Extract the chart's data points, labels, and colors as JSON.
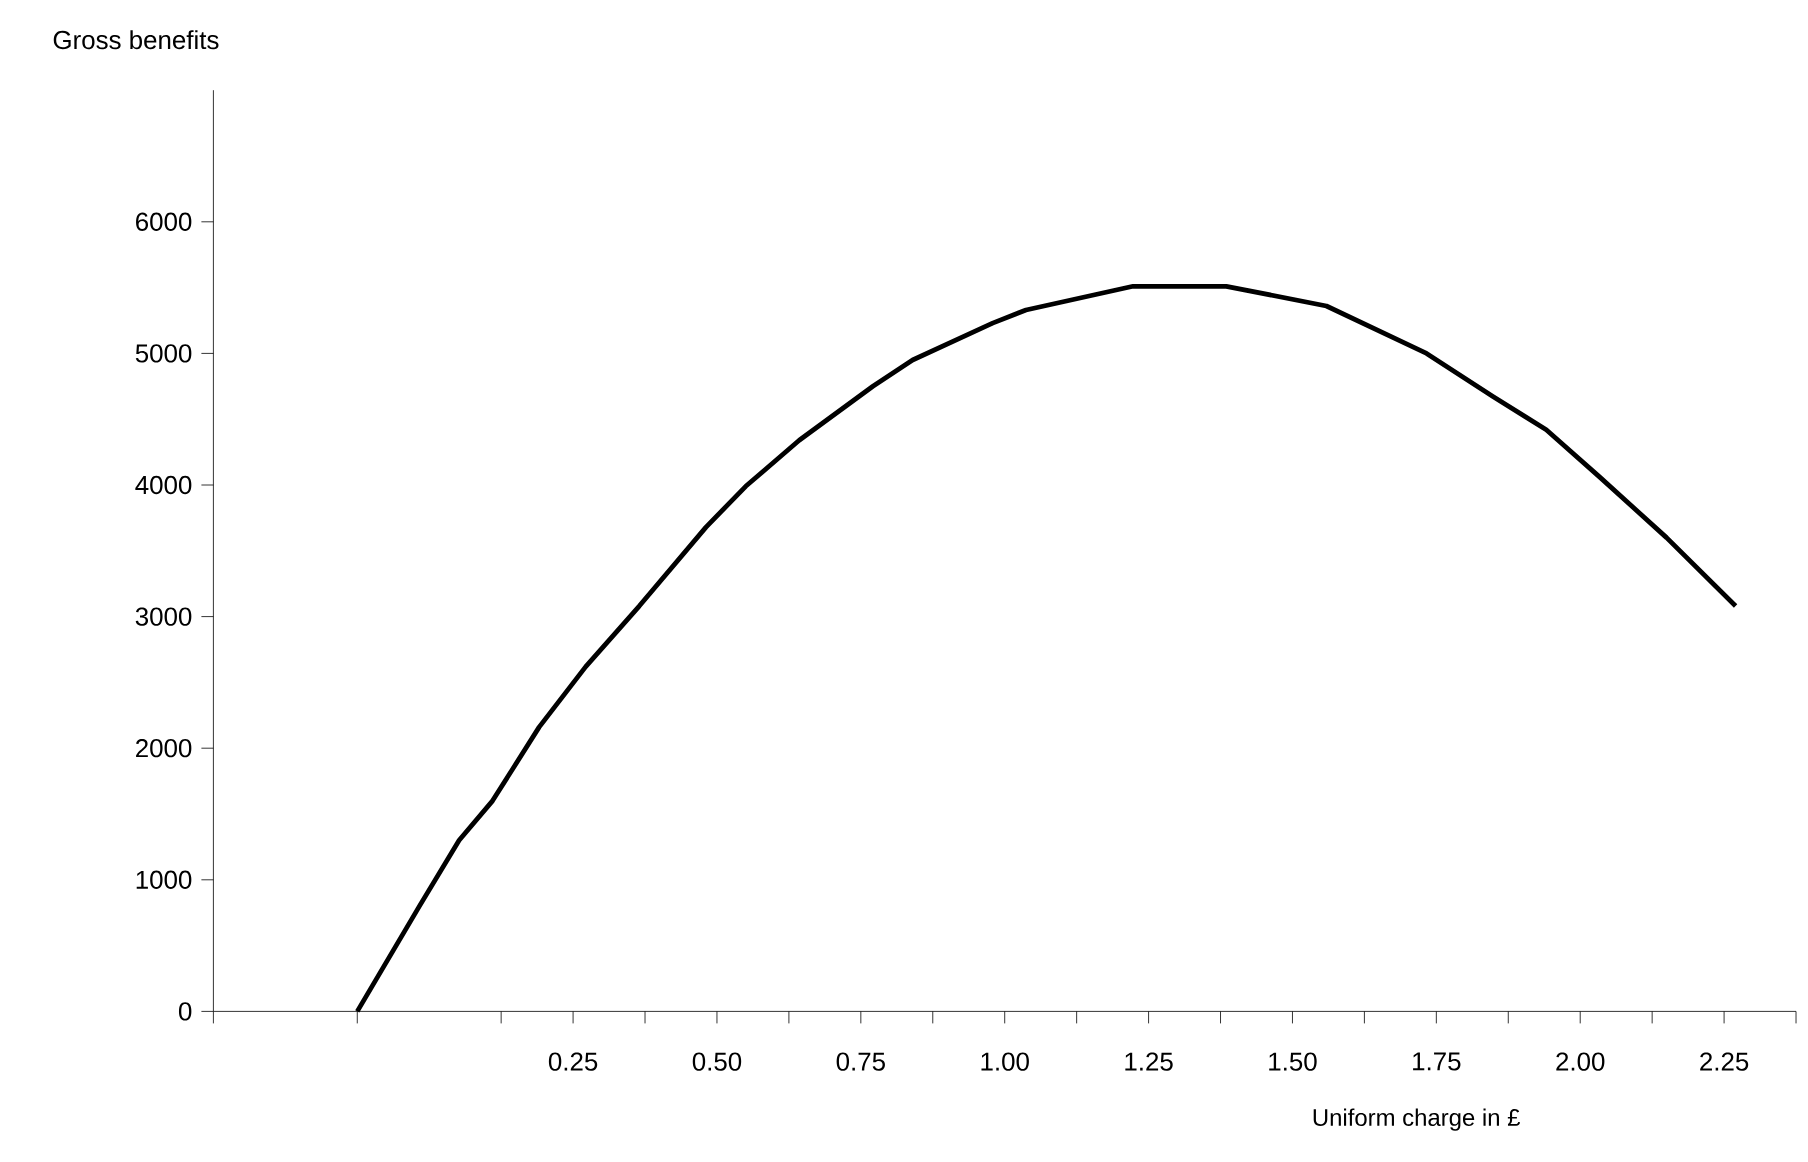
{
  "chart_data": {
    "type": "line",
    "ylabel": "Gross benefits",
    "xlabel": "Uniform charge in £",
    "x": [
      -0.125,
      -0.017,
      0.052,
      0.11,
      0.191,
      0.272,
      0.365,
      0.481,
      0.55,
      0.643,
      0.771,
      0.84,
      0.979,
      1.037,
      1.223,
      1.385,
      1.559,
      1.733,
      1.849,
      1.941,
      2.034,
      2.15,
      2.27
    ],
    "series": [
      {
        "color": "#000000",
        "values": [
          0,
          800,
          1300,
          1600,
          2160,
          2620,
          3080,
          3680,
          3990,
          4340,
          4750,
          4950,
          5230,
          5330,
          5510,
          5510,
          5360,
          5000,
          4670,
          4420,
          4060,
          3600,
          3080
        ]
      }
    ],
    "xlim": [
      -0.375,
      2.375
    ],
    "xticks": [
      {
        "value": -0.375,
        "label": null
      },
      {
        "value": -0.125,
        "label": null
      },
      {
        "value": 0.125,
        "label": null
      },
      {
        "value": 0.375,
        "label": null
      },
      {
        "value": 0.625,
        "label": null
      },
      {
        "value": 0.875,
        "label": null
      },
      {
        "value": 1.125,
        "label": null
      },
      {
        "value": 1.375,
        "label": null
      },
      {
        "value": 1.625,
        "label": null
      },
      {
        "value": 1.875,
        "label": null
      },
      {
        "value": 2.125,
        "label": null
      },
      {
        "value": 2.375,
        "label": null
      },
      {
        "value": 0.25,
        "label": "0.25"
      },
      {
        "value": 0.5,
        "label": "0.50"
      },
      {
        "value": 0.75,
        "label": "0.75"
      },
      {
        "value": 1.0,
        "label": "1.00"
      },
      {
        "value": 1.25,
        "label": "1.25"
      },
      {
        "value": 1.5,
        "label": "1.50"
      },
      {
        "value": 1.75,
        "label": "1.75"
      },
      {
        "value": 2.0,
        "label": "2.00"
      },
      {
        "value": 2.25,
        "label": "2.25"
      }
    ],
    "ylim": [
      0,
      7000
    ],
    "yticks": [
      0,
      1000,
      2000,
      3000,
      4000,
      5000,
      6000
    ],
    "line_style": "solid",
    "marker": "none",
    "grid": false
  }
}
